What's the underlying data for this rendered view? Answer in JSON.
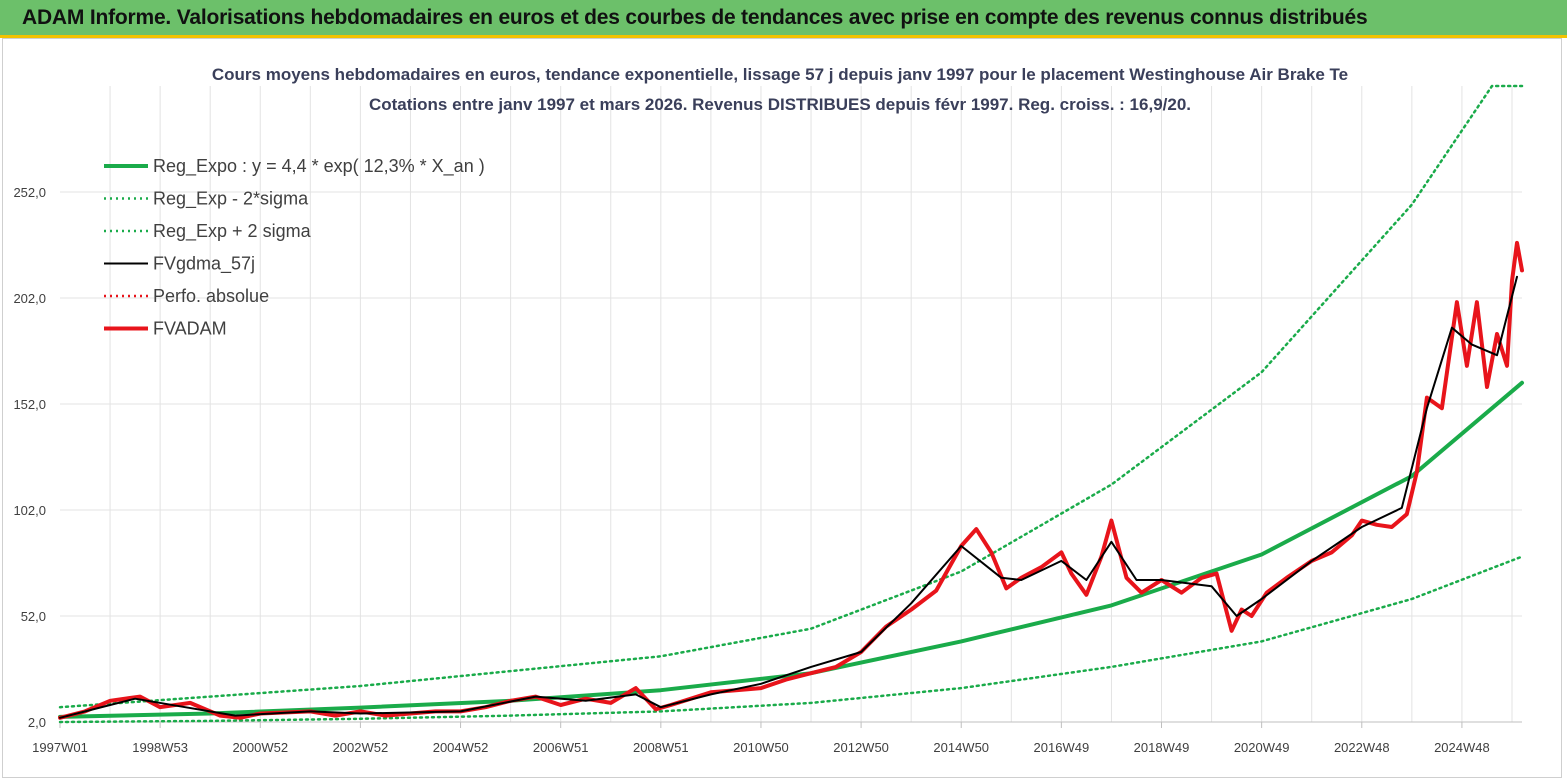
{
  "header": {
    "banner": "ADAM Informe. Valorisations hebdomadaires en euros et des courbes de tendances avec prise en compte des revenus connus distribués"
  },
  "colors": {
    "banner_bg": "#6cc06a",
    "accent_line": "#f2c200",
    "trend": "#1aab4a",
    "smoothed": "#000000",
    "price": "#e8141b"
  },
  "chart_data": {
    "type": "line",
    "title": "Cours moyens hebdomadaires en euros, tendance exponentielle, lissage 57 j depuis janv 1997  pour le placement Westinghouse Air Brake Te",
    "subtitle": "Cotations entre janv 1997 et mars 2026. Revenus  DISTRIBUES depuis févr 1997. Reg. croiss. : 16,9/20.",
    "xlabel": "",
    "ylabel": "",
    "xlim": [
      1997.0,
      2026.2
    ],
    "ylim": [
      2.0,
      302.0
    ],
    "y_ticks": [
      "2,0",
      "52,0",
      "102,0",
      "152,0",
      "202,0",
      "252,0"
    ],
    "y_tick_values": [
      2,
      52,
      102,
      152,
      202,
      252
    ],
    "x_ticks": [
      {
        "label": "1997W01",
        "t": 1997.0
      },
      {
        "label": "1998W53",
        "t": 1999.0
      },
      {
        "label": "2000W52",
        "t": 2001.0
      },
      {
        "label": "2002W52",
        "t": 2003.0
      },
      {
        "label": "2004W52",
        "t": 2005.0
      },
      {
        "label": "2006W51",
        "t": 2007.0
      },
      {
        "label": "2008W51",
        "t": 2009.0
      },
      {
        "label": "2010W50",
        "t": 2011.0
      },
      {
        "label": "2012W50",
        "t": 2013.0
      },
      {
        "label": "2014W50",
        "t": 2015.0
      },
      {
        "label": "2016W49",
        "t": 2017.0
      },
      {
        "label": "2018W49",
        "t": 2019.0
      },
      {
        "label": "2020W49",
        "t": 2021.0
      },
      {
        "label": "2022W48",
        "t": 2023.0
      },
      {
        "label": "2024W48",
        "t": 2025.0
      }
    ],
    "grid": true,
    "legend_position": "top-left",
    "series": [
      {
        "name": "Reg_Expo : y = 4,4 * exp( 12,3% *  X_an )",
        "key": "trend",
        "color": "#1aab4a",
        "style": "solid-thick",
        "x": [
          1997.0,
          2000.0,
          2003.0,
          2006.0,
          2009.0,
          2012.0,
          2015.0,
          2018.0,
          2021.0,
          2024.0,
          2026.2
        ],
        "values": [
          4.4,
          6.0,
          8.8,
          12.0,
          17.0,
          25.0,
          40.0,
          57.0,
          81.0,
          118.0,
          162.0
        ]
      },
      {
        "name": "Reg_Exp - 2*sigma",
        "key": "lower",
        "color": "#1aab4a",
        "style": "dotted",
        "x": [
          1997.0,
          2000.0,
          2003.0,
          2006.0,
          2009.0,
          2012.0,
          2015.0,
          2018.0,
          2021.0,
          2024.0,
          2026.2
        ],
        "values": [
          2.0,
          2.5,
          3.5,
          5.0,
          7.0,
          11.0,
          18.0,
          28.0,
          40.0,
          60.0,
          80.0
        ]
      },
      {
        "name": "Reg_Exp + 2 sigma",
        "key": "upper",
        "color": "#1aab4a",
        "style": "dotted",
        "x": [
          1997.0,
          2000.0,
          2003.0,
          2006.0,
          2009.0,
          2012.0,
          2015.0,
          2018.0,
          2021.0,
          2024.0,
          2025.6,
          2026.2
        ],
        "values": [
          9.0,
          14.0,
          19.0,
          26.0,
          33.0,
          46.0,
          73.0,
          114.0,
          167.0,
          246.0,
          302.0,
          302.0
        ]
      },
      {
        "name": "FVgdma_57j",
        "key": "smooth",
        "color": "#000000",
        "style": "solid",
        "x": [
          1997.0,
          1998.0,
          1998.5,
          1999.5,
          2000.5,
          2002.0,
          2003.0,
          2005.0,
          2006.5,
          2007.5,
          2008.5,
          2009.0,
          2010.0,
          2011.0,
          2012.0,
          2013.0,
          2014.0,
          2015.0,
          2015.8,
          2016.2,
          2017.0,
          2017.5,
          2018.0,
          2018.5,
          2019.0,
          2020.0,
          2020.5,
          2021.0,
          2022.0,
          2023.0,
          2023.8,
          2024.3,
          2024.8,
          2025.2,
          2025.7,
          2026.1
        ],
        "values": [
          4.0,
          10.0,
          13.0,
          9.0,
          5.0,
          7.0,
          6.0,
          7.0,
          14.0,
          12.0,
          15.0,
          9.0,
          15.0,
          20.0,
          28.0,
          35.0,
          58.0,
          85.0,
          70.0,
          69.0,
          78.0,
          69.0,
          87.0,
          69.0,
          69.0,
          66.0,
          52.0,
          60.0,
          78.0,
          94.0,
          103.0,
          150.0,
          188.0,
          180.0,
          175.0,
          212.0
        ]
      },
      {
        "name": "Perfo. absolue",
        "key": "perfo",
        "color": "#e8141b",
        "style": "dotted",
        "x": [],
        "values": []
      },
      {
        "name": "FVADAM",
        "key": "price",
        "color": "#e8141b",
        "style": "solid-thick",
        "x": [
          1997.0,
          1997.5,
          1998.0,
          1998.6,
          1999.0,
          1999.6,
          2000.2,
          2000.6,
          2001.0,
          2002.0,
          2002.5,
          2003.0,
          2003.5,
          2004.5,
          2005.0,
          2005.5,
          2006.0,
          2006.5,
          2007.0,
          2007.5,
          2008.0,
          2008.5,
          2008.9,
          2009.2,
          2009.6,
          2010.0,
          2010.5,
          2011.0,
          2011.5,
          2012.0,
          2012.5,
          2013.0,
          2013.5,
          2014.0,
          2014.5,
          2015.0,
          2015.3,
          2015.6,
          2015.9,
          2016.2,
          2016.6,
          2017.0,
          2017.2,
          2017.5,
          2017.8,
          2018.0,
          2018.3,
          2018.6,
          2019.0,
          2019.4,
          2019.8,
          2020.1,
          2020.4,
          2020.6,
          2020.8,
          2021.1,
          2021.5,
          2022.0,
          2022.4,
          2022.8,
          2023.0,
          2023.3,
          2023.6,
          2023.9,
          2024.1,
          2024.3,
          2024.6,
          2024.9,
          2025.1,
          2025.3,
          2025.5,
          2025.7,
          2025.9,
          2026.0,
          2026.1,
          2026.2
        ],
        "values": [
          4.0,
          7.0,
          12.0,
          14.0,
          9.0,
          11.0,
          5.0,
          4.0,
          6.0,
          7.0,
          5.0,
          7.0,
          5.0,
          7.0,
          7.0,
          9.0,
          12.0,
          14.0,
          10.0,
          13.0,
          11.0,
          18.0,
          8.0,
          10.0,
          13.0,
          16.0,
          17.0,
          18.0,
          22.0,
          25.0,
          28.0,
          35.0,
          47.0,
          55.0,
          64.0,
          85.0,
          93.0,
          82.0,
          65.0,
          70.0,
          75.0,
          82.0,
          72.0,
          62.0,
          80.0,
          97.0,
          70.0,
          63.0,
          69.0,
          63.0,
          70.0,
          72.0,
          45.0,
          55.0,
          52.0,
          63.0,
          70.0,
          78.0,
          82.0,
          90.0,
          97.0,
          95.0,
          94.0,
          100.0,
          120.0,
          155.0,
          150.0,
          200.0,
          170.0,
          200.0,
          160.0,
          185.0,
          170.0,
          210.0,
          228.0,
          215.0
        ]
      }
    ]
  }
}
